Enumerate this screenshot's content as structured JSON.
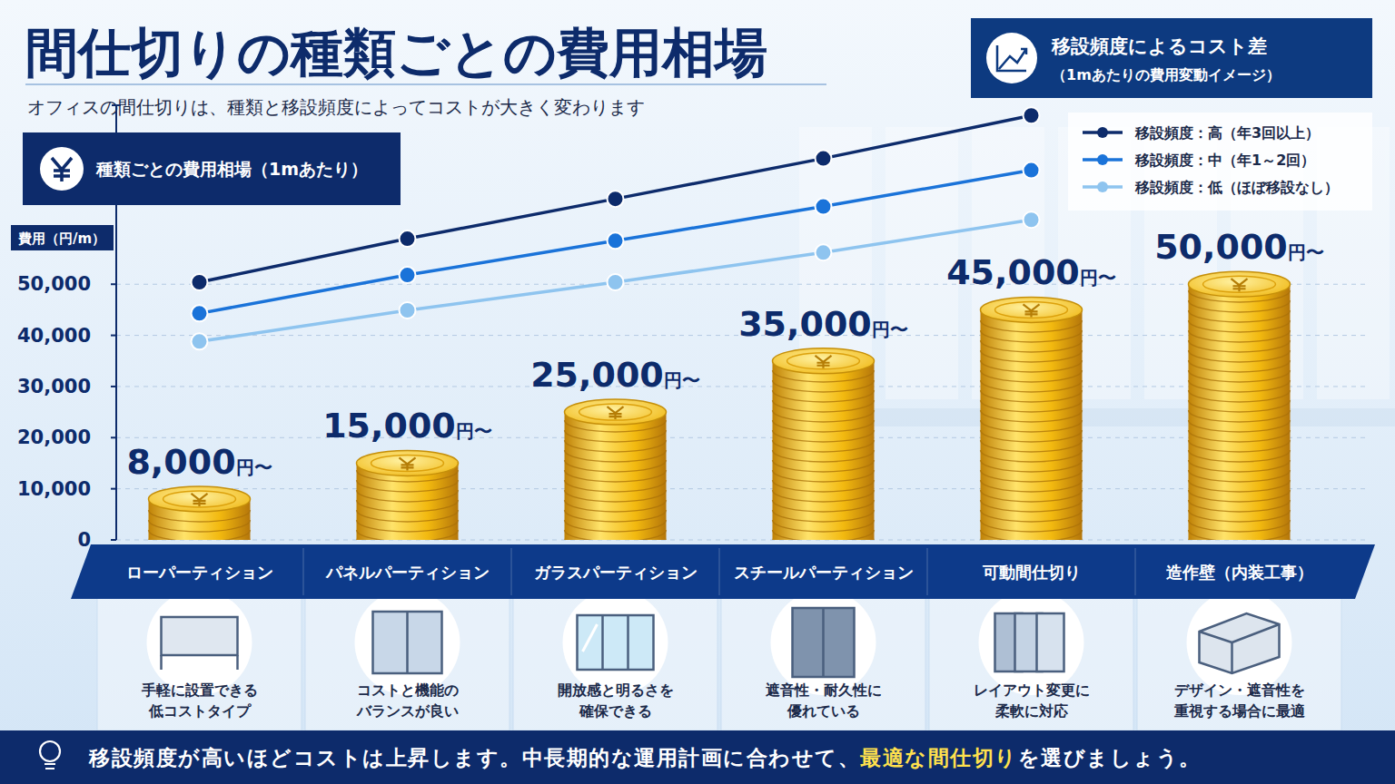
{
  "page": {
    "title": "間仕切りの種類ごとの費用相場",
    "lead": "オフィスの間仕切りは、種類と移設頻度によってコストが大きく変わります",
    "line_panel_title": "移設頻度によるコスト差",
    "line_panel_subtitle": "（1mあたりの費用変動イメージ）",
    "descriptions": [
      [
        "手軽に設置できる",
        "低コストタイプ"
      ],
      [
        "コストと機能の",
        "バランスが良い"
      ],
      [
        "開放感と明るさを",
        "確保できる"
      ],
      [
        "遮音性・耐久性に",
        "優れている"
      ],
      [
        "レイアウト変更に",
        "柔軟に対応"
      ],
      [
        "デザイン・遮音性を",
        "重視する場合に最適"
      ]
    ],
    "footer": [
      "移設頻度が高いほどコストは上昇します。中長期的な運用計画に合わせて、",
      "最適な間仕切り",
      "を選びましょう。"
    ]
  },
  "chart_data": {
    "type": "bar",
    "title": "種類ごとの費用相場（1mあたり）",
    "y_label": "費用（円/m）",
    "categories": [
      "ローパーティション",
      "パネルパーティション",
      "ガラスパーティション",
      "スチールパーティション",
      "可動間仕切り",
      "造作壁（内装工事）"
    ],
    "ylim": [
      0,
      85000
    ],
    "yticks": [
      0,
      {
        "value": 10000,
        "label": "10,000"
      },
      {
        "value": 20000,
        "label": "20,000"
      },
      {
        "value": 30000,
        "label": "30,000"
      },
      {
        "value": 40000,
        "label": "40,000"
      },
      {
        "value": 50000,
        "label": "50,000"
      }
    ],
    "grid": true,
    "legend": "top-right",
    "data_labels": true,
    "series": [
      {
        "type": "bar",
        "color": "#f2c21b",
        "values": [
          8000,
          15000,
          25000,
          35000,
          45000,
          50000
        ],
        "value_labels": [
          "8,000円〜",
          "15,000円〜",
          "25,000円〜",
          "35,000円〜",
          "45,000円〜",
          "50,000円〜"
        ]
      },
      {
        "name": "移設頻度：高（年3回以上）",
        "type": "line",
        "color": "#0d2b6b",
        "marker": "circle",
        "line_style": "solid",
        "values": [
          50400,
          58900,
          66700,
          74600,
          83000,
          null
        ]
      },
      {
        "name": "移設頻度：中（年1～2回）",
        "type": "line",
        "color": "#1a73d9",
        "marker": "circle",
        "line_style": "solid",
        "values": [
          44300,
          51800,
          58500,
          65200,
          72300,
          null
        ]
      },
      {
        "name": "移設頻度：低（ほぼ移設なし）",
        "type": "line",
        "color": "#8ec4ef",
        "marker": "circle",
        "line_style": "solid",
        "values": [
          38800,
          44900,
          50400,
          56200,
          62600,
          null
        ]
      }
    ]
  }
}
